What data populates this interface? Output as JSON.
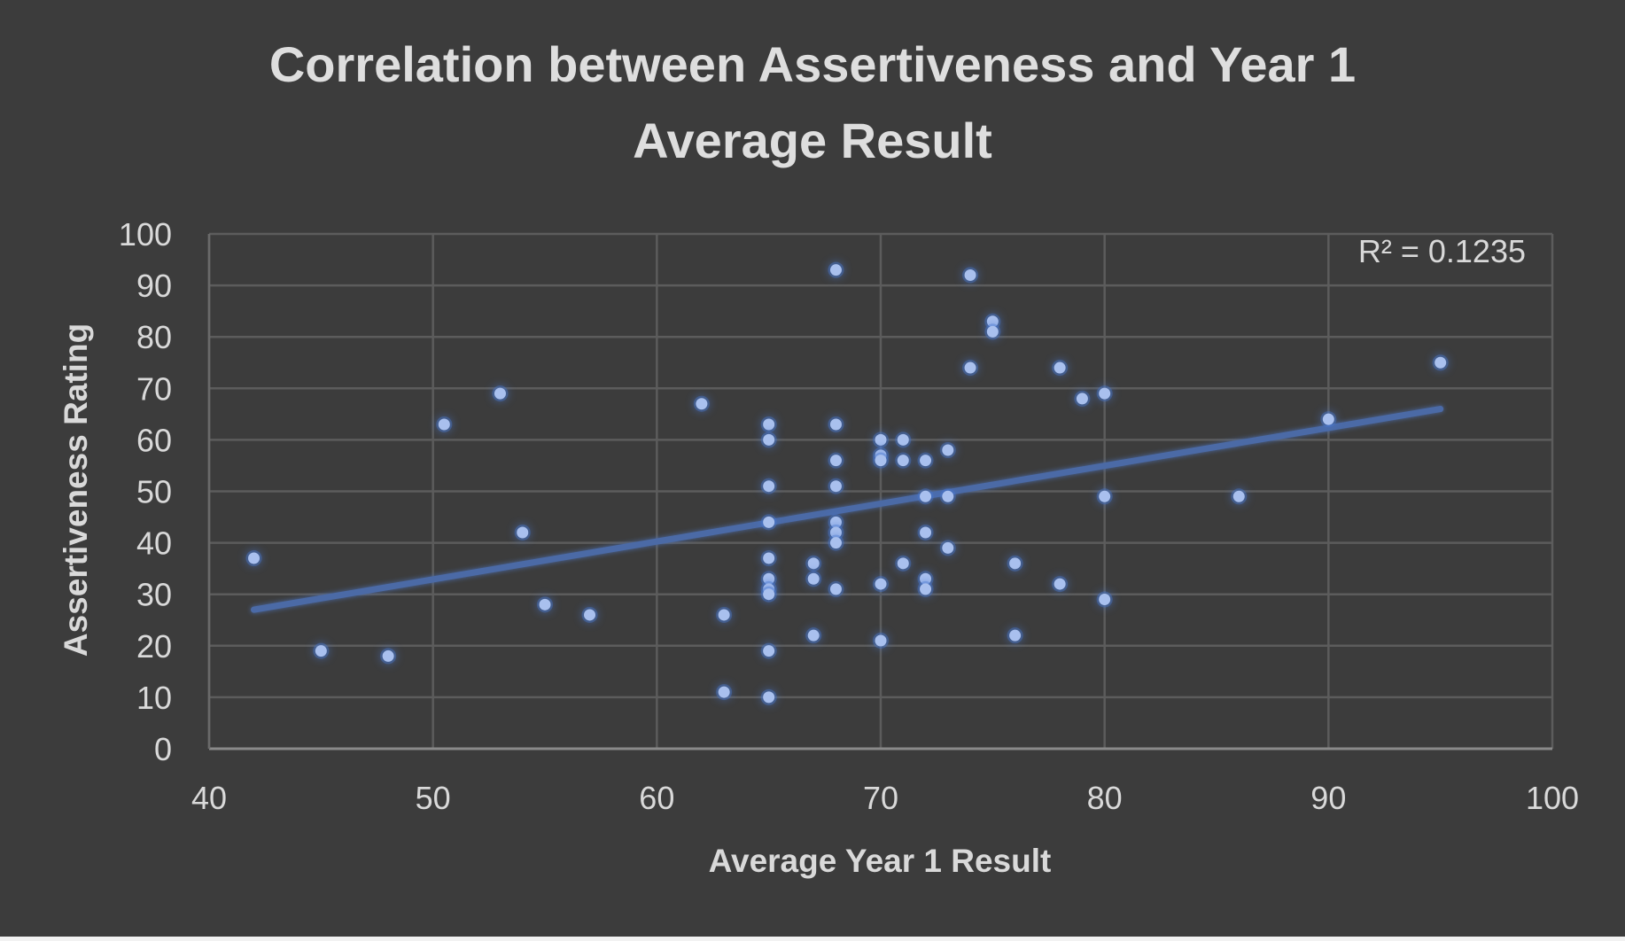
{
  "colors": {
    "background": "#3c3c3c",
    "gridline": "#5c5c5c",
    "marker": "#a9c0ee",
    "marker_glow": "#4a78d0",
    "trendline": "#4b6aa6",
    "text": "#d9d9d9"
  },
  "chart_data": {
    "type": "scatter",
    "title_lines": [
      "Correlation between Assertiveness and Year 1",
      "Average Result"
    ],
    "xlabel": "Average Year 1 Result",
    "ylabel": "Assertiveness Rating",
    "xlim": [
      40,
      100
    ],
    "ylim": [
      0,
      100
    ],
    "x_ticks": [
      40,
      50,
      60,
      70,
      80,
      90,
      100
    ],
    "y_ticks": [
      0,
      10,
      20,
      30,
      40,
      50,
      60,
      70,
      80,
      90,
      100
    ],
    "grid": true,
    "legend": "none",
    "trendline": {
      "type": "linear",
      "x_start": 42,
      "y_start": 27,
      "x_end": 95,
      "y_end": 66,
      "r_squared_label": "R² = 0.1235"
    },
    "points": [
      [
        42,
        37
      ],
      [
        45,
        19
      ],
      [
        48,
        18
      ],
      [
        50.5,
        63
      ],
      [
        53,
        69
      ],
      [
        54,
        42
      ],
      [
        55,
        28
      ],
      [
        57,
        26
      ],
      [
        62,
        67
      ],
      [
        63,
        26
      ],
      [
        63,
        11
      ],
      [
        65,
        63
      ],
      [
        65,
        60
      ],
      [
        65,
        51
      ],
      [
        65,
        44
      ],
      [
        65,
        37
      ],
      [
        65,
        33
      ],
      [
        65,
        31
      ],
      [
        65,
        30
      ],
      [
        65,
        19
      ],
      [
        65,
        10
      ],
      [
        67,
        36
      ],
      [
        67,
        33
      ],
      [
        67,
        22
      ],
      [
        68,
        93
      ],
      [
        68,
        63
      ],
      [
        68,
        56
      ],
      [
        68,
        51
      ],
      [
        68,
        44
      ],
      [
        68,
        42
      ],
      [
        68,
        40
      ],
      [
        68,
        31
      ],
      [
        70,
        60
      ],
      [
        70,
        57
      ],
      [
        70,
        56
      ],
      [
        70,
        32
      ],
      [
        70,
        21
      ],
      [
        71,
        60
      ],
      [
        71,
        56
      ],
      [
        71,
        36
      ],
      [
        72,
        56
      ],
      [
        72,
        49
      ],
      [
        72,
        42
      ],
      [
        72,
        33
      ],
      [
        72,
        31
      ],
      [
        73,
        58
      ],
      [
        73,
        49
      ],
      [
        73,
        39
      ],
      [
        74,
        92
      ],
      [
        74,
        74
      ],
      [
        75,
        83
      ],
      [
        75,
        81
      ],
      [
        76,
        36
      ],
      [
        76,
        22
      ],
      [
        78,
        74
      ],
      [
        78,
        32
      ],
      [
        79,
        68
      ],
      [
        80,
        69
      ],
      [
        80,
        49
      ],
      [
        80,
        29
      ],
      [
        86,
        49
      ],
      [
        90,
        64
      ],
      [
        95,
        75
      ]
    ]
  }
}
